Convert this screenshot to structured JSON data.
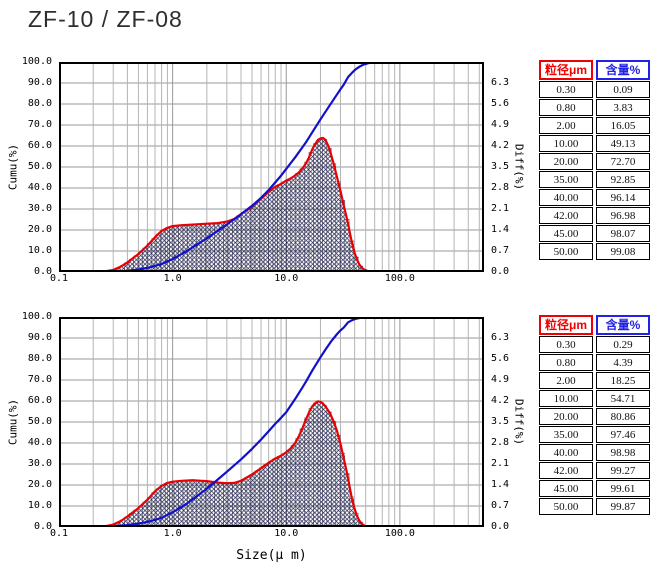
{
  "title": "ZF-10 / ZF-08",
  "colors": {
    "cumulative_line": "#1111cc",
    "differential_line": "#ea0000",
    "hatch": "#26264f",
    "grid_major": "#989898",
    "grid_minor": "#b4b4b4",
    "plot_border": "#000000",
    "header_size": "#f00000",
    "header_content": "#2222e6"
  },
  "chart_data": [
    {
      "type": "line",
      "x_axis": {
        "label": "Size(μ m)",
        "scale": "log",
        "range": [
          0.1,
          550
        ],
        "tick_values": [
          0.1,
          1.0,
          10.0,
          100.0
        ],
        "tick_labels": [
          "0.1",
          "1.0",
          "10.0",
          "100.0"
        ]
      },
      "y_axis_left": {
        "label": "Cumu(%)",
        "range": [
          0,
          100
        ],
        "tick_labels": [
          "100.0",
          "90.0",
          "80.0",
          "70.0",
          "60.0",
          "50.0",
          "40.0",
          "30.0",
          "20.0",
          "10.0",
          "0.0"
        ]
      },
      "y_axis_right": {
        "label": "Diff(%)",
        "range": [
          0,
          7
        ],
        "tick_labels": [
          "6.3",
          "5.6",
          "4.9",
          "4.2",
          "3.5",
          "2.8",
          "2.1",
          "1.4",
          "0.7",
          "0.0"
        ]
      },
      "series": [
        {
          "name": "cumulative",
          "axis": "left",
          "color": "#1111cc",
          "points": [
            [
              0.1,
              0
            ],
            [
              0.2,
              0
            ],
            [
              0.25,
              0.03
            ],
            [
              0.3,
              0.09
            ],
            [
              0.4,
              0.55
            ],
            [
              0.5,
              1.2
            ],
            [
              0.6,
              2.0
            ],
            [
              0.7,
              2.9
            ],
            [
              0.8,
              3.83
            ],
            [
              1.0,
              6.2
            ],
            [
              1.3,
              9.6
            ],
            [
              1.6,
              12.7
            ],
            [
              2.0,
              16.05
            ],
            [
              2.5,
              19.6
            ],
            [
              3.0,
              22.6
            ],
            [
              4.0,
              27.5
            ],
            [
              5.0,
              31.5
            ],
            [
              6.0,
              35.3
            ],
            [
              7.0,
              39.0
            ],
            [
              8.0,
              42.6
            ],
            [
              9.0,
              45.9
            ],
            [
              10.0,
              49.13
            ],
            [
              12,
              54.6
            ],
            [
              14,
              59.7
            ],
            [
              15,
              62.0
            ],
            [
              17,
              66.6
            ],
            [
              20,
              72.7
            ],
            [
              22,
              76.1
            ],
            [
              25,
              80.6
            ],
            [
              28,
              84.6
            ],
            [
              30,
              87.0
            ],
            [
              32,
              89.1
            ],
            [
              35,
              92.85
            ],
            [
              38,
              94.9
            ],
            [
              40,
              96.14
            ],
            [
              42,
              96.98
            ],
            [
              45,
              98.07
            ],
            [
              48,
              98.8
            ],
            [
              50,
              99.08
            ],
            [
              55,
              99.7
            ],
            [
              60,
              99.95
            ],
            [
              70,
              100
            ],
            [
              550,
              100
            ]
          ]
        },
        {
          "name": "differential",
          "axis": "right",
          "color": "#ea0000",
          "fill": "crosshatch",
          "points": [
            [
              0.2,
              0
            ],
            [
              0.25,
              0.02
            ],
            [
              0.3,
              0.07
            ],
            [
              0.35,
              0.18
            ],
            [
              0.4,
              0.32
            ],
            [
              0.5,
              0.6
            ],
            [
              0.6,
              0.88
            ],
            [
              0.7,
              1.16
            ],
            [
              0.8,
              1.37
            ],
            [
              0.9,
              1.47
            ],
            [
              1.0,
              1.53
            ],
            [
              1.2,
              1.56
            ],
            [
              1.5,
              1.58
            ],
            [
              2.0,
              1.61
            ],
            [
              2.5,
              1.63
            ],
            [
              3.0,
              1.68
            ],
            [
              3.5,
              1.77
            ],
            [
              4.0,
              1.93
            ],
            [
              4.5,
              2.06
            ],
            [
              5.0,
              2.17
            ],
            [
              6.0,
              2.45
            ],
            [
              7.0,
              2.66
            ],
            [
              8.0,
              2.84
            ],
            [
              9.0,
              2.94
            ],
            [
              10,
              3.05
            ],
            [
              11,
              3.12
            ],
            [
              12,
              3.22
            ],
            [
              13,
              3.33
            ],
            [
              14,
              3.47
            ],
            [
              15,
              3.64
            ],
            [
              16,
              3.85
            ],
            [
              17,
              4.1
            ],
            [
              18,
              4.27
            ],
            [
              19,
              4.4
            ],
            [
              20,
              4.45
            ],
            [
              21,
              4.47
            ],
            [
              22,
              4.41
            ],
            [
              23,
              4.27
            ],
            [
              24,
              4.1
            ],
            [
              26,
              3.64
            ],
            [
              28,
              3.15
            ],
            [
              30,
              2.7
            ],
            [
              32,
              2.24
            ],
            [
              34,
              1.82
            ],
            [
              35,
              1.61
            ],
            [
              36,
              1.37
            ],
            [
              38,
              0.95
            ],
            [
              40,
              0.63
            ],
            [
              42,
              0.41
            ],
            [
              44,
              0.25
            ],
            [
              46,
              0.15
            ],
            [
              48,
              0.09
            ],
            [
              50,
              0.06
            ],
            [
              53,
              0.02
            ],
            [
              56,
              0.01
            ],
            [
              60,
              0
            ],
            [
              550,
              0
            ]
          ]
        }
      ],
      "table": {
        "headers": [
          "粒径μm",
          "含量%"
        ],
        "rows": [
          [
            "0.30",
            "0.09"
          ],
          [
            "0.80",
            "3.83"
          ],
          [
            "2.00",
            "16.05"
          ],
          [
            "10.00",
            "49.13"
          ],
          [
            "20.00",
            "72.70"
          ],
          [
            "35.00",
            "92.85"
          ],
          [
            "40.00",
            "96.14"
          ],
          [
            "42.00",
            "96.98"
          ],
          [
            "45.00",
            "98.07"
          ],
          [
            "50.00",
            "99.08"
          ]
        ]
      }
    },
    {
      "type": "line",
      "x_axis": {
        "label": "Size(μ m)",
        "scale": "log",
        "range": [
          0.1,
          550
        ],
        "tick_values": [
          0.1,
          1.0,
          10.0,
          100.0
        ],
        "tick_labels": [
          "0.1",
          "1.0",
          "10.0",
          "100.0"
        ]
      },
      "y_axis_left": {
        "label": "Cumu(%)",
        "range": [
          0,
          100
        ],
        "tick_labels": [
          "100.0",
          "90.0",
          "80.0",
          "70.0",
          "60.0",
          "50.0",
          "40.0",
          "30.0",
          "20.0",
          "10.0",
          "0.0"
        ]
      },
      "y_axis_right": {
        "label": "Diff(%)",
        "range": [
          0,
          7
        ],
        "tick_labels": [
          "6.3",
          "5.6",
          "4.9",
          "4.2",
          "3.5",
          "2.8",
          "2.1",
          "1.4",
          "0.7",
          "0.0"
        ]
      },
      "series": [
        {
          "name": "cumulative",
          "axis": "left",
          "color": "#1111cc",
          "points": [
            [
              0.1,
              0
            ],
            [
              0.2,
              0
            ],
            [
              0.25,
              0.08
            ],
            [
              0.3,
              0.29
            ],
            [
              0.4,
              0.9
            ],
            [
              0.5,
              1.6
            ],
            [
              0.6,
              2.5
            ],
            [
              0.7,
              3.4
            ],
            [
              0.8,
              4.39
            ],
            [
              1.0,
              7.0
            ],
            [
              1.3,
              10.7
            ],
            [
              1.6,
              14.3
            ],
            [
              2.0,
              18.25
            ],
            [
              2.5,
              22.6
            ],
            [
              3.0,
              26.3
            ],
            [
              4.0,
              32.2
            ],
            [
              5.0,
              37.2
            ],
            [
              6.0,
              41.6
            ],
            [
              7.0,
              45.6
            ],
            [
              8.0,
              49.1
            ],
            [
              9.0,
              52.0
            ],
            [
              10.0,
              54.71
            ],
            [
              12,
              61.0
            ],
            [
              14,
              66.8
            ],
            [
              15,
              69.5
            ],
            [
              17,
              74.6
            ],
            [
              20,
              80.86
            ],
            [
              22,
              84.3
            ],
            [
              25,
              88.6
            ],
            [
              28,
              91.9
            ],
            [
              30,
              93.6
            ],
            [
              32,
              94.9
            ],
            [
              35,
              97.46
            ],
            [
              38,
              98.5
            ],
            [
              40,
              98.98
            ],
            [
              42,
              99.27
            ],
            [
              45,
              99.61
            ],
            [
              48,
              99.8
            ],
            [
              50,
              99.87
            ],
            [
              55,
              99.97
            ],
            [
              60,
              100
            ],
            [
              550,
              100
            ]
          ]
        },
        {
          "name": "differential",
          "axis": "right",
          "color": "#ea0000",
          "fill": "crosshatch",
          "points": [
            [
              0.2,
              0
            ],
            [
              0.25,
              0.02
            ],
            [
              0.3,
              0.08
            ],
            [
              0.35,
              0.2
            ],
            [
              0.4,
              0.35
            ],
            [
              0.5,
              0.63
            ],
            [
              0.6,
              0.91
            ],
            [
              0.7,
              1.19
            ],
            [
              0.8,
              1.37
            ],
            [
              0.9,
              1.47
            ],
            [
              1.0,
              1.51
            ],
            [
              1.2,
              1.54
            ],
            [
              1.5,
              1.56
            ],
            [
              1.8,
              1.54
            ],
            [
              2.0,
              1.53
            ],
            [
              2.5,
              1.48
            ],
            [
              3.0,
              1.46
            ],
            [
              3.5,
              1.47
            ],
            [
              4.0,
              1.54
            ],
            [
              4.5,
              1.65
            ],
            [
              5.0,
              1.75
            ],
            [
              6.0,
              1.96
            ],
            [
              7.0,
              2.14
            ],
            [
              8.0,
              2.28
            ],
            [
              9.0,
              2.38
            ],
            [
              10,
              2.49
            ],
            [
              11,
              2.63
            ],
            [
              12,
              2.8
            ],
            [
              13,
              3.05
            ],
            [
              14,
              3.33
            ],
            [
              15,
              3.61
            ],
            [
              16,
              3.85
            ],
            [
              17,
              4.03
            ],
            [
              18,
              4.13
            ],
            [
              19,
              4.19
            ],
            [
              20,
              4.17
            ],
            [
              21,
              4.12
            ],
            [
              22,
              4.03
            ],
            [
              24,
              3.82
            ],
            [
              26,
              3.54
            ],
            [
              28,
              3.19
            ],
            [
              30,
              2.77
            ],
            [
              32,
              2.31
            ],
            [
              34,
              1.86
            ],
            [
              35,
              1.61
            ],
            [
              36,
              1.37
            ],
            [
              38,
              0.91
            ],
            [
              40,
              0.6
            ],
            [
              42,
              0.36
            ],
            [
              44,
              0.21
            ],
            [
              46,
              0.12
            ],
            [
              48,
              0.06
            ],
            [
              50,
              0.03
            ],
            [
              53,
              0.01
            ],
            [
              56,
              0
            ],
            [
              550,
              0
            ]
          ]
        }
      ],
      "table": {
        "headers": [
          "粒径μm",
          "含量%"
        ],
        "rows": [
          [
            "0.30",
            "0.29"
          ],
          [
            "0.80",
            "4.39"
          ],
          [
            "2.00",
            "18.25"
          ],
          [
            "10.00",
            "54.71"
          ],
          [
            "20.00",
            "80.86"
          ],
          [
            "35.00",
            "97.46"
          ],
          [
            "40.00",
            "98.98"
          ],
          [
            "42.00",
            "99.27"
          ],
          [
            "45.00",
            "99.61"
          ],
          [
            "50.00",
            "99.87"
          ]
        ]
      }
    }
  ]
}
